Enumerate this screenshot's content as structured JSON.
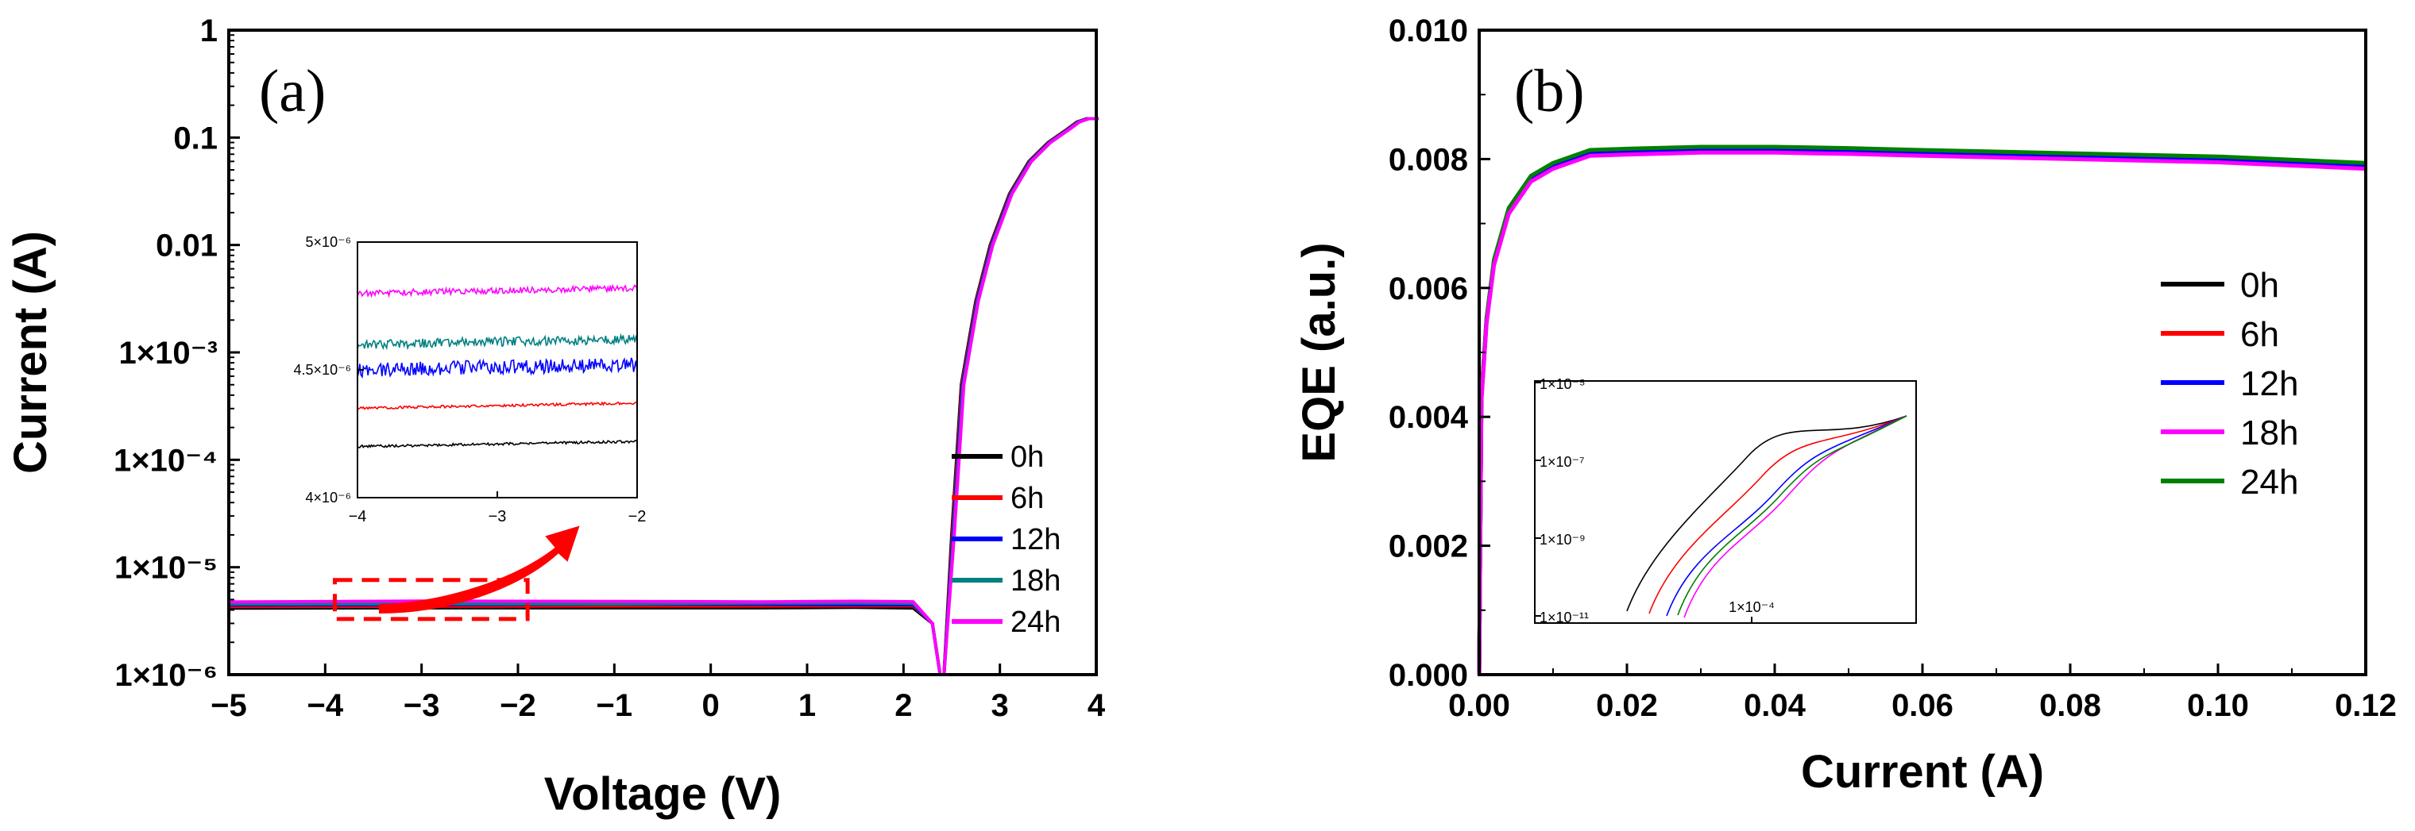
{
  "chart_data": [
    {
      "type": "line",
      "panel_label": "(a)",
      "xlabel": "Voltage (V)",
      "ylabel": "Current (A)",
      "xlim": [
        -5,
        4
      ],
      "ylim_log": [
        -6,
        0
      ],
      "yscale": "log",
      "x_ticks": [
        "−5",
        "−4",
        "−3",
        "−2",
        "−1",
        "0",
        "1",
        "2",
        "3",
        "4"
      ],
      "y_ticks": [
        "1×10⁻⁶",
        "1×10⁻⁵",
        "1×10⁻⁴",
        "1×10⁻³",
        "0.01",
        "0.1",
        "1"
      ],
      "series": [
        {
          "name": "0h",
          "color": "#000000",
          "leakage_A": 4.2e-06
        },
        {
          "name": "6h",
          "color": "#ff0000",
          "leakage_A": 4.35e-06
        },
        {
          "name": "12h",
          "color": "#0000ff",
          "leakage_A": 4.5e-06
        },
        {
          "name": "18h",
          "color": "#008080",
          "leakage_A": 4.6e-06
        },
        {
          "name": "24h",
          "color": "#ff00ff",
          "leakage_A": 4.8e-06
        }
      ],
      "curve_points": {
        "voltage": [
          -5,
          -3,
          -1,
          0.5,
          1.5,
          2.1,
          2.3,
          2.38,
          2.42,
          2.5,
          2.6,
          2.75,
          2.9,
          3.1,
          3.3,
          3.5,
          3.7,
          3.8,
          3.9,
          4.0
        ],
        "current": [
          4.5e-06,
          4.55e-06,
          4.5e-06,
          4.5e-06,
          4.4e-06,
          4.2e-06,
          3e-06,
          1e-06,
          1e-06,
          2e-05,
          0.0005,
          0.003,
          0.01,
          0.03,
          0.06,
          0.09,
          0.12,
          0.14,
          0.15,
          0.15
        ]
      },
      "highlight_box_voltage": [
        -3.9,
        -1.9
      ],
      "inset": {
        "xlim": [
          -4,
          -2
        ],
        "ylim": [
          4e-06,
          5e-06
        ],
        "x_ticks": [
          "−4",
          "−3",
          "−2"
        ],
        "y_ticks": [
          "4×10⁻⁶",
          "4.5×10⁻⁶",
          "5×10⁻⁶"
        ]
      }
    },
    {
      "type": "line",
      "panel_label": "(b)",
      "xlabel": "Current (A)",
      "ylabel": "EQE (a.u.)",
      "xlim": [
        0,
        0.12
      ],
      "ylim": [
        0,
        0.01
      ],
      "x_ticks": [
        "0.00",
        "0.02",
        "0.04",
        "0.06",
        "0.08",
        "0.10",
        "0.12"
      ],
      "y_ticks": [
        "0.000",
        "0.002",
        "0.004",
        "0.006",
        "0.008",
        "0.010"
      ],
      "series": [
        {
          "name": "0h",
          "color": "#000000"
        },
        {
          "name": "6h",
          "color": "#ff0000"
        },
        {
          "name": "12h",
          "color": "#0000ff"
        },
        {
          "name": "18h",
          "color": "#ff00ff"
        },
        {
          "name": "24h",
          "color": "#008000"
        }
      ],
      "curve_points": {
        "current": [
          0,
          0.0003,
          0.001,
          0.002,
          0.004,
          0.007,
          0.01,
          0.015,
          0.02,
          0.03,
          0.04,
          0.05,
          0.06,
          0.08,
          0.1,
          0.12
        ],
        "eqe": [
          0,
          0.0043,
          0.0055,
          0.0064,
          0.0072,
          0.0077,
          0.0079,
          0.0081,
          0.00812,
          0.00815,
          0.00815,
          0.00813,
          0.0081,
          0.00805,
          0.008,
          0.0079
        ]
      },
      "inset": {
        "y_ticks": [
          "1×10⁻⁵",
          "1×10⁻⁷",
          "1×10⁻⁹",
          "1×10⁻¹¹"
        ],
        "x_ticks": [
          "1×10⁻⁴"
        ]
      }
    }
  ]
}
